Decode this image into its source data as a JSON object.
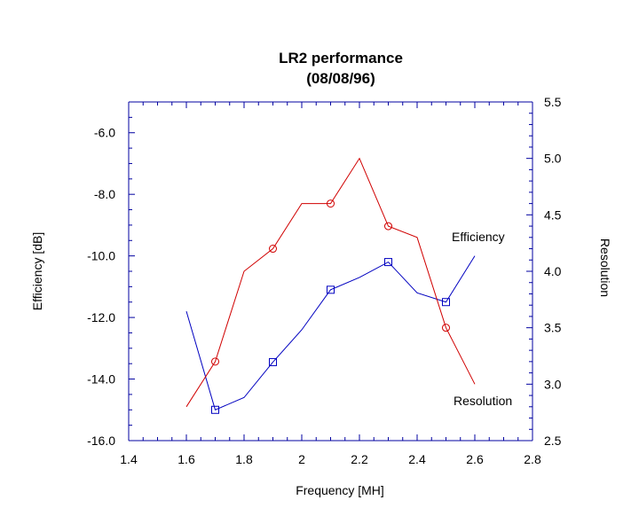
{
  "chart_data": {
    "type": "line",
    "title": "LR2 performance",
    "subtitle": "(08/08/96)",
    "xlabel": "Frequency [MH]",
    "ylabel_left": "Efficiency [dB]",
    "ylabel_right": "Resolution",
    "xlim": [
      1.4,
      2.8
    ],
    "ylim_left": [
      -16.0,
      -5.0
    ],
    "ylim_right": [
      2.5,
      5.5
    ],
    "x_ticks": [
      "1.4",
      "1.6",
      "1.8",
      "2",
      "2.2",
      "2.4",
      "2.6",
      "2.8"
    ],
    "y_left_ticks": [
      "-6.0",
      "-8.0",
      "-10.0",
      "-12.0",
      "-14.0",
      "-16.0"
    ],
    "y_right_ticks": [
      "5.5",
      "5.0",
      "4.5",
      "4.0",
      "3.5",
      "3.0",
      "2.5"
    ],
    "grid": false,
    "series": [
      {
        "name": "Efficiency",
        "axis": "left",
        "color": "#0000c0",
        "marker": "square",
        "x": [
          1.6,
          1.7,
          1.8,
          1.9,
          2.0,
          2.1,
          2.2,
          2.3,
          2.4,
          2.5,
          2.6
        ],
        "y": [
          -11.8,
          -15.0,
          -14.6,
          -13.45,
          -12.4,
          -11.1,
          -10.7,
          -10.2,
          -11.2,
          -11.5,
          -10.0
        ],
        "marker_x": [
          1.7,
          1.9,
          2.1,
          2.3,
          2.5
        ]
      },
      {
        "name": "Resolution",
        "axis": "right",
        "color": "#d00000",
        "marker": "circle",
        "x": [
          1.6,
          1.7,
          1.8,
          1.9,
          2.0,
          2.1,
          2.2,
          2.3,
          2.4,
          2.5,
          2.6
        ],
        "y": [
          2.8,
          3.2,
          4.0,
          4.2,
          4.6,
          4.6,
          5.0,
          4.4,
          4.3,
          3.5,
          3.0
        ],
        "marker_x": [
          1.7,
          1.9,
          2.1,
          2.3,
          2.5
        ]
      }
    ]
  }
}
